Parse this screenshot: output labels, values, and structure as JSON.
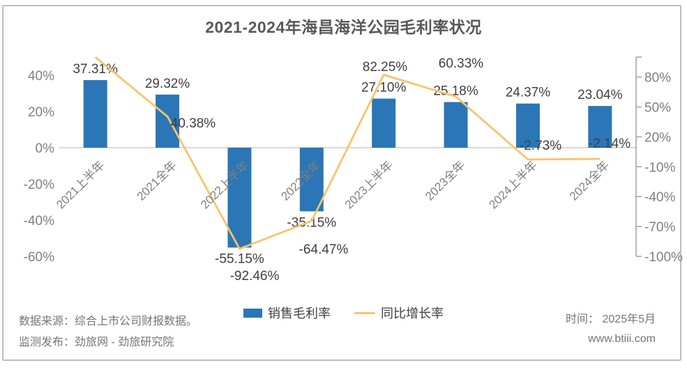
{
  "title": "2021-2024年海昌海洋公园毛利率状况",
  "chart_data": {
    "type": "bar",
    "subtype": "combo-bar-line-dual-axis",
    "categories": [
      "2021上半年",
      "2021全年",
      "2022上半年",
      "2022全年",
      "2023上半年",
      "2023全年",
      "2024上半年",
      "2024全年"
    ],
    "series": [
      {
        "name": "销售毛利率",
        "type": "bar",
        "axis": "left",
        "values": [
          37.31,
          29.32,
          -55.15,
          -35.15,
          27.1,
          25.18,
          24.37,
          23.04
        ],
        "labels": [
          "37.31%",
          "29.32%",
          "-55.15%",
          "-35.15%",
          "27.10%",
          "25.18%",
          "24.37%",
          "23.04%"
        ]
      },
      {
        "name": "同比增长率",
        "type": "line",
        "axis": "right",
        "values": [
          100.0,
          40.38,
          -92.46,
          -64.47,
          82.25,
          60.33,
          -2.73,
          -2.14
        ],
        "labels": [
          "",
          "40.38%",
          "-92.46%",
          "-64.47%",
          "82.25%",
          "60.33%",
          "-2.73%",
          "-2.14%"
        ]
      }
    ],
    "left_axis": {
      "min": -60,
      "max": 50,
      "tick_values": [
        40,
        20,
        0,
        -20,
        -40,
        -60
      ],
      "tick_labels": [
        "40%",
        "20%",
        "0%",
        "-20%",
        "-40%",
        "-60%"
      ]
    },
    "right_axis": {
      "min": -100,
      "max": 100,
      "tick_values": [
        80,
        50,
        20,
        -10,
        -40,
        -70,
        -100
      ],
      "tick_labels": [
        "80%",
        "50%",
        "20%",
        "-10%",
        "-40%",
        "-70%",
        "-100%"
      ]
    },
    "grid": "zero-line-only",
    "legend_position": "bottom-center",
    "colors": {
      "bar": "#2b76b6",
      "line": "#fac36b",
      "label_text": "#3f3f3f",
      "axis_text": "#7f7f7f",
      "zero_line": "#d9d9d9",
      "right_axis_line": "#a6a6a6"
    }
  },
  "legend": [
    {
      "label": "销售毛利率"
    },
    {
      "label": "同比增长率"
    }
  ],
  "footer": {
    "source_line1": "数据来源：综合上市公司财报数据。",
    "source_line2": "监测发布：劲旅网 - 劲旅研究院",
    "time_label": "时间：  2025年5月",
    "website": "www.btiii.com"
  }
}
